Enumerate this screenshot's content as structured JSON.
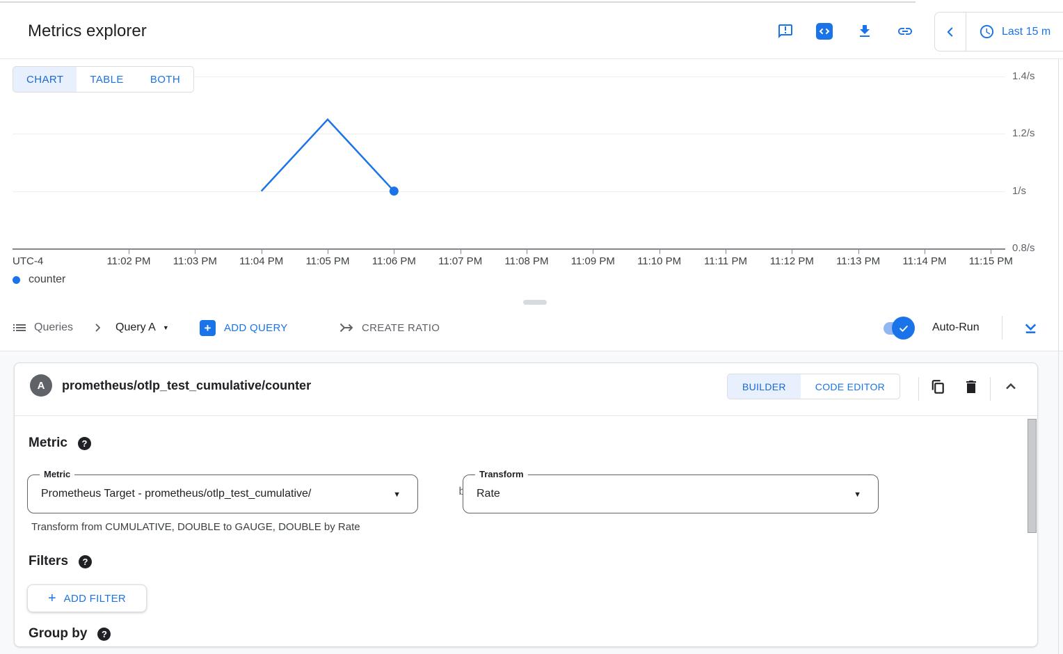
{
  "header": {
    "title": "Metrics explorer",
    "action_icons": [
      "feedback",
      "code-editor",
      "download",
      "link"
    ],
    "time_range": "Last 15 m"
  },
  "view_tabs": [
    {
      "label": "CHART",
      "selected": true
    },
    {
      "label": "TABLE",
      "selected": false
    },
    {
      "label": "BOTH",
      "selected": false
    }
  ],
  "chart_data": {
    "type": "line",
    "title": "",
    "timezone": "UTC-4",
    "ylim": [
      0.8,
      1.4
    ],
    "grid": true,
    "legend_position": "bottom-left",
    "y_ticks": [
      {
        "label": "1.4/s",
        "value": 1.4
      },
      {
        "label": "1.2/s",
        "value": 1.2
      },
      {
        "label": "1/s",
        "value": 1.0
      },
      {
        "label": "0.8/s",
        "value": 0.8
      }
    ],
    "x_ticks": [
      "11:02 PM",
      "11:03 PM",
      "11:04 PM",
      "11:05 PM",
      "11:06 PM",
      "11:07 PM",
      "11:08 PM",
      "11:09 PM",
      "11:10 PM",
      "11:11 PM",
      "11:12 PM",
      "11:13 PM",
      "11:14 PM",
      "11:15 PM"
    ],
    "series": [
      {
        "name": "counter",
        "color": "#1a73e8",
        "points": [
          {
            "x": "11:04 PM",
            "y": 1.0
          },
          {
            "x": "11:05 PM",
            "y": 1.25
          },
          {
            "x": "11:06 PM",
            "y": 1.0
          }
        ],
        "end_marker": true
      }
    ]
  },
  "queries_bar": {
    "queries_label": "Queries",
    "query_name": "Query A",
    "add_query_label": "ADD QUERY",
    "create_ratio_label": "CREATE RATIO",
    "auto_run_label": "Auto-Run",
    "auto_run_on": true
  },
  "query_card": {
    "letter": "A",
    "title": "prometheus/otlp_test_cumulative/counter",
    "editor_tabs": [
      {
        "label": "BUILDER",
        "selected": true
      },
      {
        "label": "CODE EDITOR",
        "selected": false
      }
    ],
    "metric_section": {
      "heading": "Metric",
      "field_label": "Metric",
      "field_value": "Prometheus Target - prometheus/otlp_test_cumulative/",
      "by_label": "by",
      "transform_label": "Transform",
      "transform_value": "Rate",
      "helper_text": "Transform from CUMULATIVE, DOUBLE to GAUGE, DOUBLE by Rate"
    },
    "filters_section": {
      "heading": "Filters",
      "add_filter_label": "ADD FILTER"
    },
    "group_by_section": {
      "heading": "Group by"
    }
  },
  "glyphs": {
    "help": "?",
    "caret": "▼",
    "plus": "+"
  },
  "colors": {
    "accent": "#1a73e8",
    "selected_tab_bg": "#e8f0fe",
    "selected_tab_text": "#1967d2",
    "line_series": "#1a73e8",
    "gray_text": "#5f6368"
  }
}
